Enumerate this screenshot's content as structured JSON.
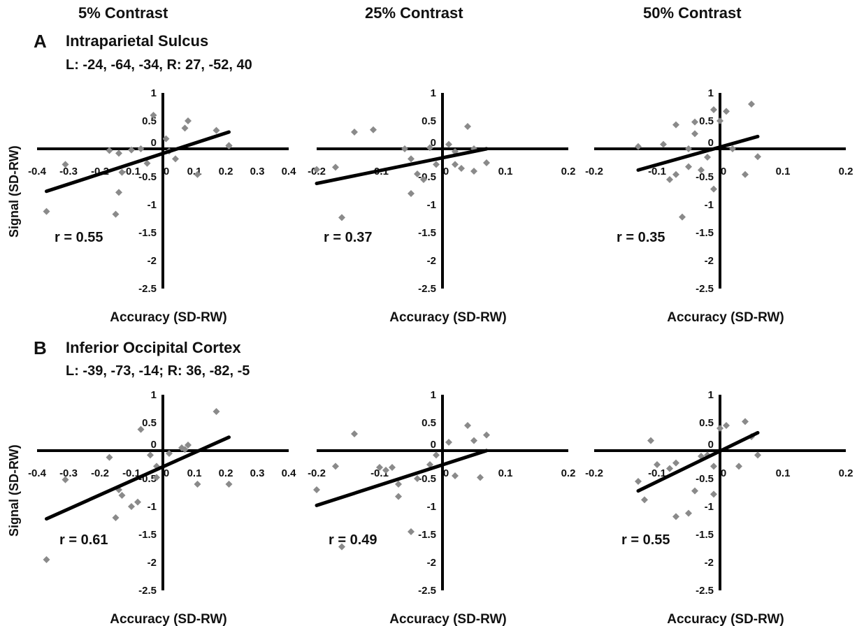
{
  "column_titles": [
    "5% Contrast",
    "25% Contrast",
    "50% Contrast"
  ],
  "panels": [
    {
      "letter": "A",
      "title": "Intraparietal Sulcus",
      "coords": "L: -24, -64, -34, R: 27, -52, 40"
    },
    {
      "letter": "B",
      "title": "Inferior Occipital Cortex",
      "coords": "L: -39, -73, -14; R: 36, -82, -5"
    }
  ],
  "y_axis_label": "Signal (SD-RW)",
  "x_axis_label": "Accuracy (SD-RW)",
  "colors": {
    "axis": "#000000",
    "point": "#8a8a8a",
    "fit": "#000000"
  },
  "chart_data": [
    {
      "type": "scatter",
      "panel": "A",
      "column": "5% Contrast",
      "xlabel": "Accuracy (SD-RW)",
      "ylabel": "Signal (SD-RW)",
      "xlim": [
        -0.4,
        0.4
      ],
      "ylim": [
        -2.5,
        1
      ],
      "xticks": [
        "-0.4",
        "-0.3",
        "-0.2",
        "-0.1",
        "0",
        "0.1",
        "0.2",
        "0.3",
        "0.4"
      ],
      "yticks": [
        "1",
        "0.5",
        "0",
        "-0.5",
        "-1",
        "-1.5",
        "-2",
        "-2.5"
      ],
      "r_label": "r = 0.55",
      "points": [
        [
          -0.37,
          -1.12
        ],
        [
          -0.31,
          -0.28
        ],
        [
          -0.17,
          -0.03
        ],
        [
          -0.14,
          -0.08
        ],
        [
          -0.13,
          -0.42
        ],
        [
          -0.14,
          -0.78
        ],
        [
          -0.15,
          -1.17
        ],
        [
          -0.1,
          -0.02
        ],
        [
          -0.07,
          -0.0
        ],
        [
          -0.03,
          0.6
        ],
        [
          0.01,
          0.18
        ],
        [
          0.02,
          -0.04
        ],
        [
          0.04,
          -0.18
        ],
        [
          0.07,
          0.37
        ],
        [
          0.08,
          0.5
        ],
        [
          0.11,
          -0.46
        ],
        [
          0.17,
          0.33
        ],
        [
          0.21,
          0.05
        ],
        [
          0.21,
          0.06
        ],
        [
          -0.05,
          -0.26
        ]
      ],
      "fit_line": [
        [
          -0.37,
          -0.76
        ],
        [
          0.21,
          0.3
        ]
      ]
    },
    {
      "type": "scatter",
      "panel": "A",
      "column": "25% Contrast",
      "xlabel": "Accuracy (SD-RW)",
      "ylabel": "Signal (SD-RW)",
      "xlim": [
        -0.2,
        0.2
      ],
      "ylim": [
        -2.5,
        1
      ],
      "xticks": [
        "-0.2",
        "-0.1",
        "0",
        "0.1",
        "0.2"
      ],
      "yticks": [
        "1",
        "0.5",
        "0",
        "-0.5",
        "-1",
        "-1.5",
        "-2",
        "-2.5"
      ],
      "r_label": "r = 0.37",
      "points": [
        [
          -0.2,
          -0.37
        ],
        [
          -0.17,
          -0.33
        ],
        [
          -0.16,
          -1.23
        ],
        [
          -0.14,
          0.3
        ],
        [
          -0.11,
          0.34
        ],
        [
          -0.06,
          0.0
        ],
        [
          -0.05,
          -0.18
        ],
        [
          -0.05,
          -0.8
        ],
        [
          -0.04,
          -0.45
        ],
        [
          -0.03,
          -0.55
        ],
        [
          -0.01,
          -0.28
        ],
        [
          0.01,
          0.08
        ],
        [
          0.02,
          -0.05
        ],
        [
          0.02,
          -0.28
        ],
        [
          0.03,
          -0.35
        ],
        [
          0.05,
          -0.4
        ],
        [
          0.04,
          0.4
        ],
        [
          0.05,
          0.0
        ],
        [
          0.07,
          -0.25
        ],
        [
          -0.02,
          0.02
        ]
      ],
      "fit_line": [
        [
          -0.2,
          -0.62
        ],
        [
          0.07,
          0.0
        ]
      ]
    },
    {
      "type": "scatter",
      "panel": "A",
      "column": "50% Contrast",
      "xlabel": "Accuracy (SD-RW)",
      "ylabel": "Signal (SD-RW)",
      "xlim": [
        -0.2,
        0.2
      ],
      "ylim": [
        -2.5,
        1
      ],
      "xticks": [
        "-0.2",
        "-0.1",
        "0",
        "0.1",
        "0.2"
      ],
      "yticks": [
        "1",
        "0.5",
        "0",
        "-0.5",
        "-1",
        "-1.5",
        "-2",
        "-2.5"
      ],
      "r_label": "r = 0.35",
      "points": [
        [
          -0.13,
          0.04
        ],
        [
          -0.09,
          0.08
        ],
        [
          -0.08,
          -0.55
        ],
        [
          -0.07,
          -0.46
        ],
        [
          -0.07,
          0.43
        ],
        [
          -0.05,
          -0.32
        ],
        [
          -0.04,
          0.27
        ],
        [
          -0.04,
          0.48
        ],
        [
          -0.03,
          -0.38
        ],
        [
          -0.01,
          0.7
        ],
        [
          0.0,
          0.5
        ],
        [
          0.01,
          0.67
        ],
        [
          0.02,
          0.0
        ],
        [
          0.04,
          -0.46
        ],
        [
          0.05,
          0.8
        ],
        [
          0.06,
          -0.14
        ],
        [
          -0.01,
          -0.72
        ],
        [
          -0.02,
          -0.15
        ],
        [
          -0.06,
          -1.22
        ],
        [
          -0.05,
          0.0
        ]
      ],
      "fit_line": [
        [
          -0.13,
          -0.38
        ],
        [
          0.06,
          0.22
        ]
      ]
    },
    {
      "type": "scatter",
      "panel": "B",
      "column": "5% Contrast",
      "xlabel": "Accuracy (SD-RW)",
      "ylabel": "Signal (SD-RW)",
      "xlim": [
        -0.4,
        0.4
      ],
      "ylim": [
        -2.5,
        1
      ],
      "xticks": [
        "-0.4",
        "-0.3",
        "-0.2",
        "-0.1",
        "0",
        "0.1",
        "0.2",
        "0.3",
        "0.4"
      ],
      "yticks": [
        "1",
        "0.5",
        "0",
        "-0.5",
        "-1",
        "-1.5",
        "-2",
        "-2.5"
      ],
      "r_label": "r = 0.61",
      "points": [
        [
          -0.37,
          -1.95
        ],
        [
          -0.31,
          -0.52
        ],
        [
          -0.17,
          -0.12
        ],
        [
          -0.14,
          -0.7
        ],
        [
          -0.13,
          -0.8
        ],
        [
          -0.15,
          -1.2
        ],
        [
          -0.1,
          -1.0
        ],
        [
          -0.08,
          -0.92
        ],
        [
          -0.07,
          0.38
        ],
        [
          -0.04,
          -0.08
        ],
        [
          -0.02,
          -0.28
        ],
        [
          0.02,
          -0.05
        ],
        [
          0.07,
          0.02
        ],
        [
          0.08,
          0.1
        ],
        [
          0.11,
          -0.6
        ],
        [
          0.17,
          0.7
        ],
        [
          0.21,
          -0.6
        ],
        [
          -0.02,
          -0.48
        ],
        [
          0.06,
          0.05
        ]
      ],
      "fit_line": [
        [
          -0.37,
          -1.22
        ],
        [
          0.21,
          0.24
        ]
      ]
    },
    {
      "type": "scatter",
      "panel": "B",
      "column": "25% Contrast",
      "xlabel": "Accuracy (SD-RW)",
      "ylabel": "Signal (SD-RW)",
      "xlim": [
        -0.2,
        0.2
      ],
      "ylim": [
        -2.5,
        1
      ],
      "xticks": [
        "-0.2",
        "-0.1",
        "0",
        "0.1",
        "0.2"
      ],
      "yticks": [
        "1",
        "0.5",
        "0",
        "-0.5",
        "-1",
        "-1.5",
        "-2",
        "-2.5"
      ],
      "r_label": "r = 0.49",
      "points": [
        [
          -0.2,
          -0.7
        ],
        [
          -0.17,
          -0.28
        ],
        [
          -0.16,
          -1.72
        ],
        [
          -0.14,
          0.3
        ],
        [
          -0.1,
          -0.3
        ],
        [
          -0.09,
          -0.35
        ],
        [
          -0.07,
          -0.6
        ],
        [
          -0.07,
          -0.82
        ],
        [
          -0.05,
          -1.45
        ],
        [
          -0.04,
          -0.5
        ],
        [
          -0.02,
          -0.25
        ],
        [
          0.01,
          0.15
        ],
        [
          0.02,
          -0.45
        ],
        [
          0.04,
          0.45
        ],
        [
          0.05,
          0.18
        ],
        [
          0.06,
          -0.48
        ],
        [
          0.07,
          0.28
        ],
        [
          -0.01,
          -0.08
        ],
        [
          -0.08,
          -0.3
        ]
      ],
      "fit_line": [
        [
          -0.2,
          -0.98
        ],
        [
          0.07,
          0.0
        ]
      ]
    },
    {
      "type": "scatter",
      "panel": "B",
      "column": "50% Contrast",
      "xlabel": "Accuracy (SD-RW)",
      "ylabel": "Signal (SD-RW)",
      "xlim": [
        -0.2,
        0.2
      ],
      "ylim": [
        -2.5,
        1
      ],
      "xticks": [
        "-0.2",
        "-0.1",
        "0",
        "0.1",
        "0.2"
      ],
      "yticks": [
        "1",
        "0.5",
        "0",
        "-0.5",
        "-1",
        "-1.5",
        "-2",
        "-2.5"
      ],
      "r_label": "r = 0.55",
      "points": [
        [
          -0.13,
          -0.55
        ],
        [
          -0.12,
          -0.88
        ],
        [
          -0.11,
          0.18
        ],
        [
          -0.08,
          -0.32
        ],
        [
          -0.07,
          -0.22
        ],
        [
          -0.07,
          -1.18
        ],
        [
          -0.05,
          -1.12
        ],
        [
          -0.04,
          -0.72
        ],
        [
          -0.03,
          -0.1
        ],
        [
          -0.02,
          -0.08
        ],
        [
          -0.01,
          -0.28
        ],
        [
          0.0,
          0.4
        ],
        [
          0.01,
          0.45
        ],
        [
          0.03,
          -0.28
        ],
        [
          0.04,
          0.52
        ],
        [
          0.05,
          0.25
        ],
        [
          0.06,
          -0.08
        ],
        [
          -0.01,
          -0.78
        ],
        [
          -0.1,
          -0.25
        ]
      ],
      "fit_line": [
        [
          -0.13,
          -0.72
        ],
        [
          0.06,
          0.32
        ]
      ]
    }
  ]
}
